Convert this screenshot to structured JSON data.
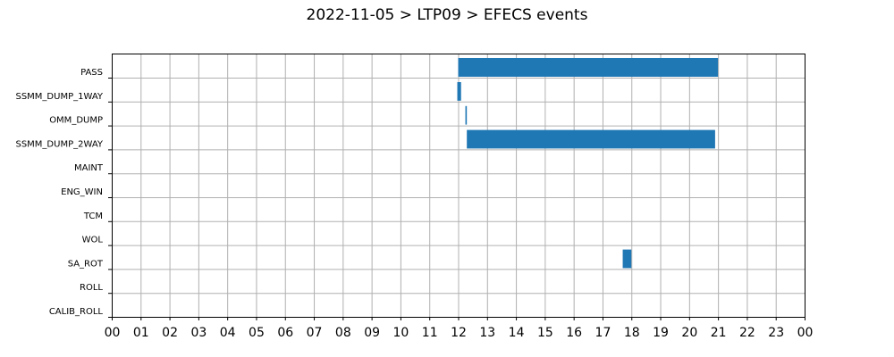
{
  "chart_data": {
    "type": "bar",
    "orientation": "horizontal",
    "title": "2022-11-05 > LTP09 > EFECS events",
    "categories": [
      "PASS",
      "SSMM_DUMP_1WAY",
      "OMM_DUMP",
      "SSMM_DUMP_2WAY",
      "MAINT",
      "ENG_WIN",
      "TCM",
      "WOL",
      "SA_ROT",
      "ROLL",
      "CALIB_ROLL"
    ],
    "x_tick_labels": [
      "00",
      "01",
      "02",
      "03",
      "04",
      "05",
      "06",
      "07",
      "08",
      "09",
      "10",
      "11",
      "12",
      "13",
      "14",
      "15",
      "16",
      "17",
      "18",
      "19",
      "20",
      "21",
      "22",
      "23",
      "00"
    ],
    "xlim": [
      0,
      24
    ],
    "grid": true,
    "bar_color": "#1f77b4",
    "events": [
      {
        "category": "PASS",
        "start": 12.0,
        "end": 21.0
      },
      {
        "category": "SSMM_DUMP_1WAY",
        "start": 11.97,
        "end": 12.1
      },
      {
        "category": "OMM_DUMP",
        "start": 12.25,
        "end": 12.3
      },
      {
        "category": "SSMM_DUMP_2WAY",
        "start": 12.3,
        "end": 20.9
      },
      {
        "category": "SA_ROT",
        "start": 17.7,
        "end": 18.0
      }
    ]
  }
}
